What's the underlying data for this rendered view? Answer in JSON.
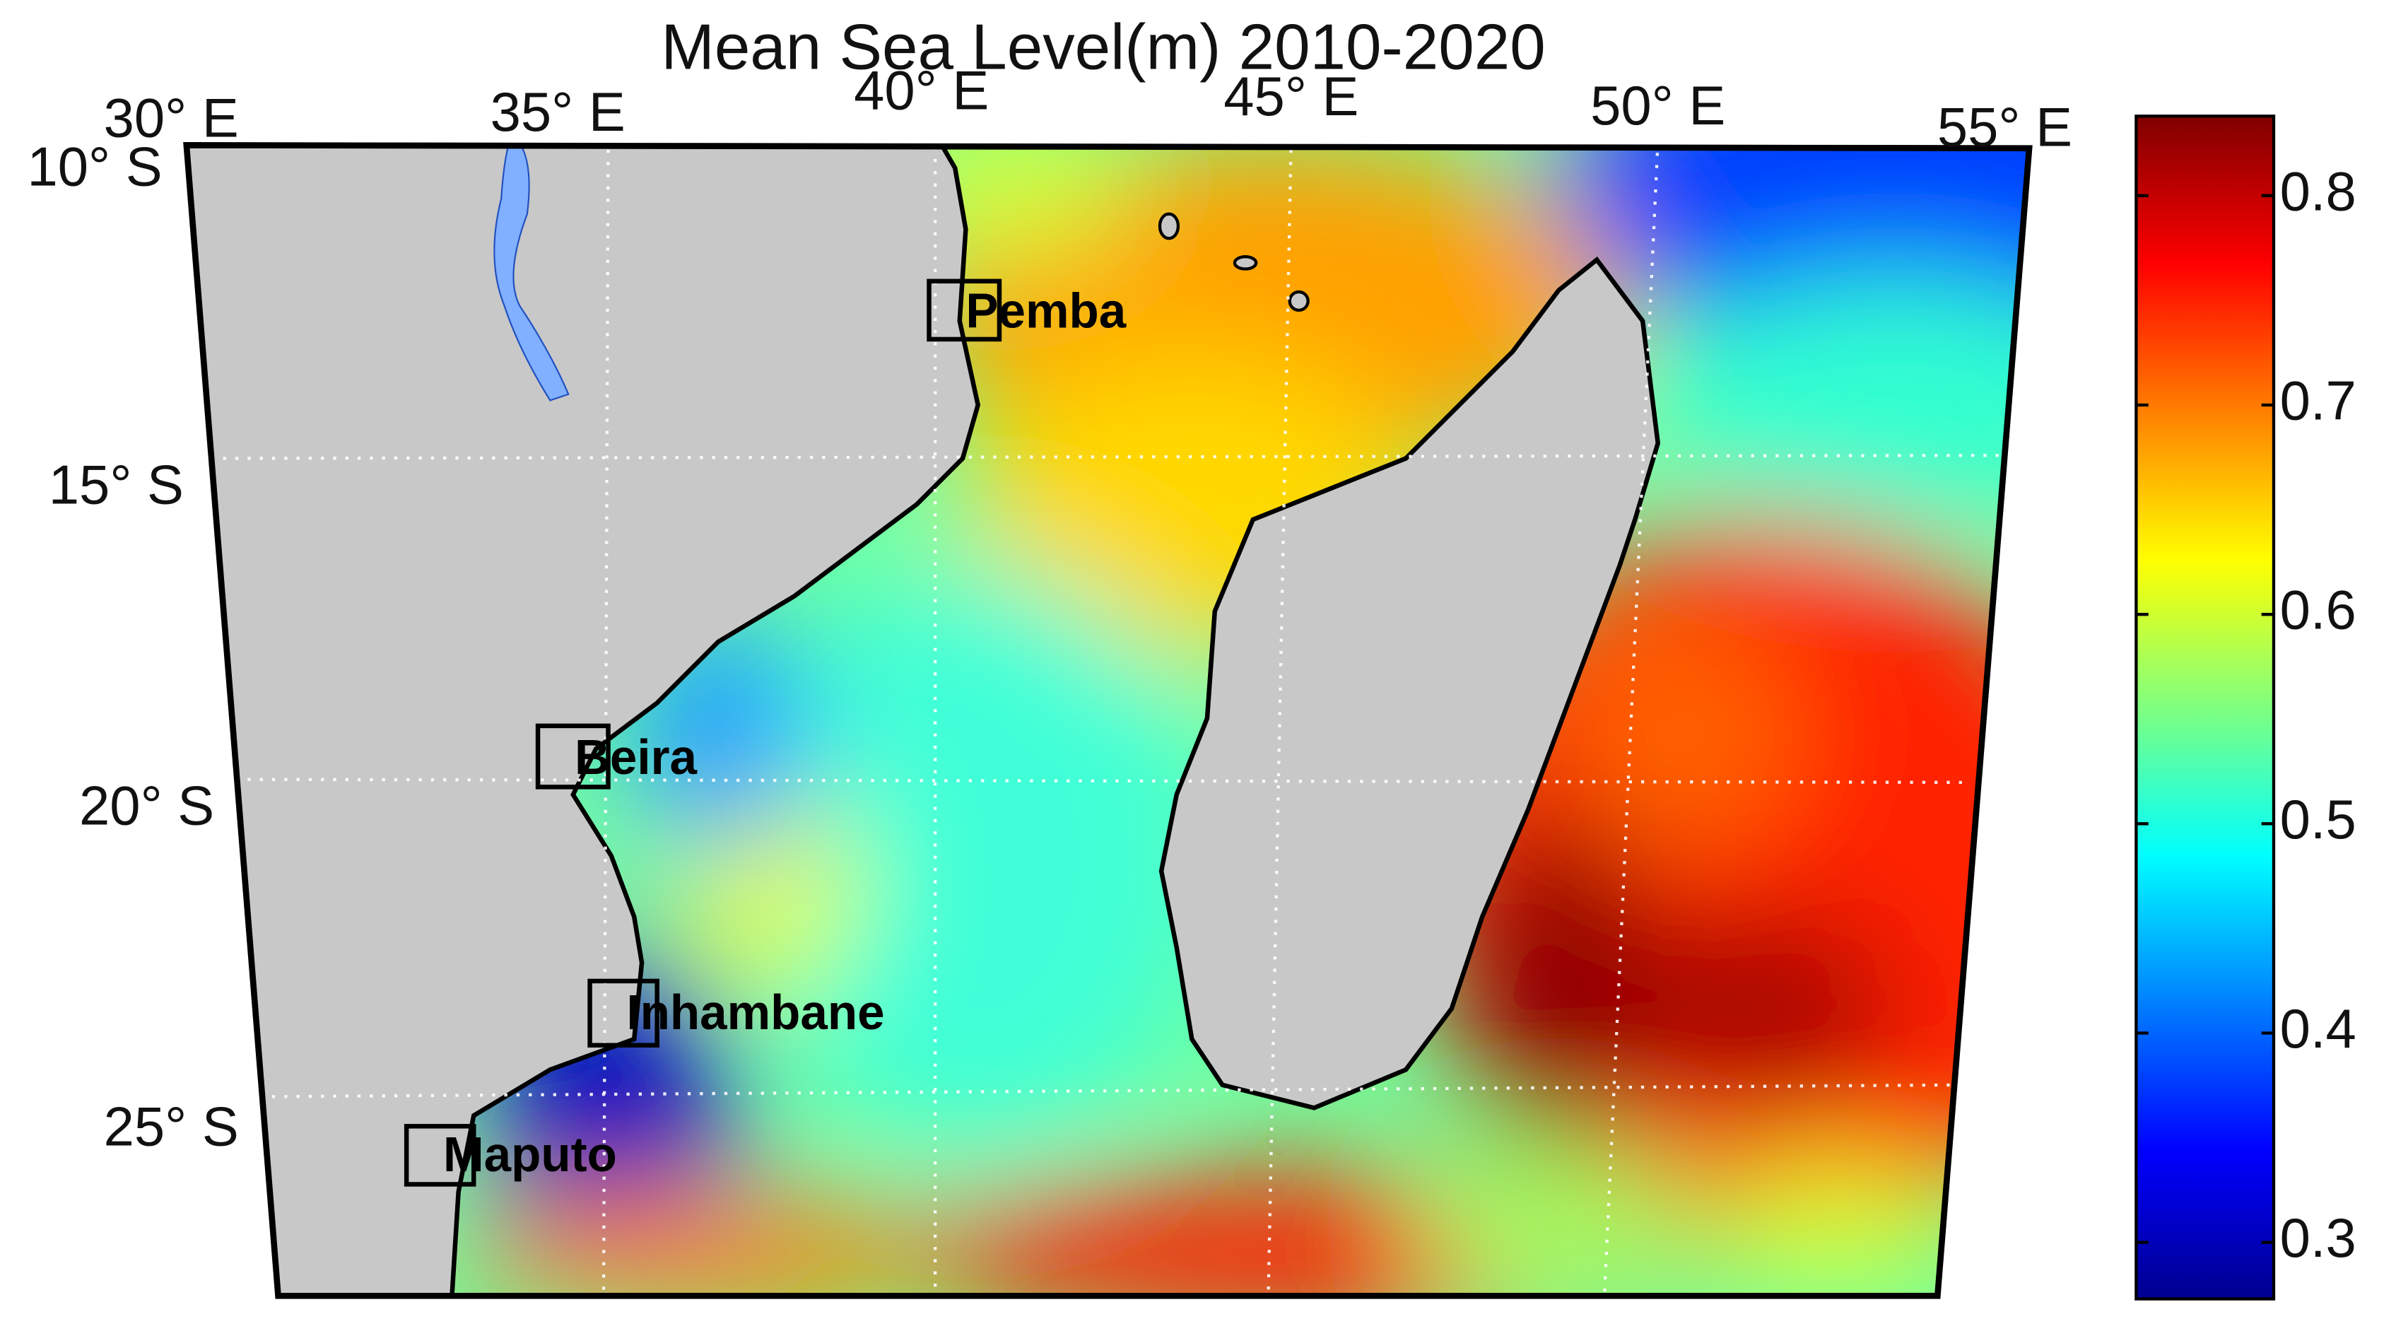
{
  "title": "Mean Sea Level(m) 2010-2020",
  "longitude_labels": [
    "30° E",
    "35° E",
    "40° E",
    "45° E",
    "50° E",
    "55° E"
  ],
  "latitude_labels": [
    "10° S",
    "15° S",
    "20° S",
    "25° S"
  ],
  "cities": [
    "Pemba",
    "Beira",
    "Inhambane",
    "Maputo"
  ],
  "colorbar": {
    "lim": [
      0.273,
      0.838
    ],
    "ticks": [
      0.3,
      0.4,
      0.5,
      0.6,
      0.7,
      0.8
    ]
  }
}
